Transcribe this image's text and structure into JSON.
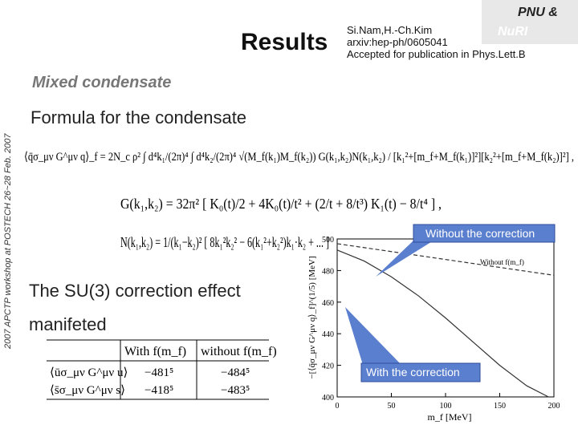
{
  "header": {
    "title": "Results",
    "org_line1": "PNU  &",
    "org_line2": "NuRI",
    "authors": "Si.Nam,H.-Ch.Kim",
    "arxiv": "arxiv:hep-ph/0605041",
    "status": "Accepted for publication in Phys.Lett.B"
  },
  "side_note": "2007 APCTP workshop at POSTECH  26~28 Feb. 2007",
  "section": "Mixed condensate",
  "formula_heading": "Formula for the condensate",
  "formulas": [
    "⟨q̄σ_μν G^μν q⟩_f = 2N_c ρ² ∫ d⁴k₁/(2π)⁴ ∫ d⁴k₂/(2π)⁴ √(M_f(k₁)M_f(k₂)) G(k₁,k₂)N(k₁,k₂) / [k₁²+[m_f+M_f(k₁)]²][k₂²+[m_f+M_f(k₂)]²] ,",
    "G(k₁,k₂) = 32π² [ K₀(t)/2 + 4K₀(t)/t² + (2/t + 8/t³) K₁(t) − 8/t⁴ ] ,",
    "N(k₁,k₂) = 1/(k₁−k₂)² [ 8k₁²k₂² − 6(k₁²+k₂²)k₁·k₂ + ... ]"
  ],
  "su3_text": [
    "The SU(3) correction effect",
    "manifeted"
  ],
  "table": {
    "header": [
      "With f(m_f)",
      "without f(m_f)"
    ],
    "rows": [
      [
        "⟨ūσ_μν G^μν u⟩",
        "−481⁵",
        "−484⁵"
      ],
      [
        "⟨s̄σ_μν G^μν s⟩",
        "−418⁵",
        "−483⁵"
      ]
    ]
  },
  "callouts": {
    "without": "Without the correction",
    "with": "With the correction"
  },
  "chart_data": {
    "type": "line",
    "x_label": "m_f [MeV]",
    "y_label": "−[⟨q̄σ_μν G^μν q⟩_f]^(1/5) [MeV]",
    "xlim": [
      0,
      200
    ],
    "ylim": [
      400,
      500
    ],
    "xticks": [
      0,
      50,
      100,
      150,
      200
    ],
    "yticks": [
      400,
      420,
      440,
      460,
      480,
      500
    ],
    "series": [
      {
        "name": "Without f(m_f)",
        "color": "#333333",
        "dashed": true,
        "x": [
          0,
          200
        ],
        "values": [
          497,
          477
        ]
      },
      {
        "color": "#333333",
        "dashed": false,
        "x": [
          0,
          25,
          50,
          75,
          100,
          125,
          150,
          175,
          195
        ],
        "values": [
          493,
          486,
          476,
          464,
          450,
          435,
          420,
          407,
          400
        ]
      }
    ]
  }
}
